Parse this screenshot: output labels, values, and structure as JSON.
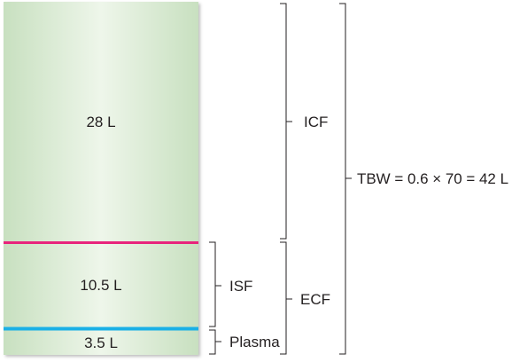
{
  "compartments": {
    "icf_volume": "28 L",
    "isf_volume": "10.5 L",
    "plasma_volume": "3.5 L"
  },
  "brackets": {
    "icf": "ICF",
    "isf": "ISF",
    "plasma": "Plasma",
    "ecf": "ECF",
    "tbw": "TBW = 0.6 × 70 = 42 L"
  },
  "colors": {
    "column_edge": "#c8e0c0",
    "column_center": "#eef6ea",
    "isf_divider": "#e8247c",
    "plasma_divider": "#1ab0e6",
    "bracket": "#231f20"
  }
}
